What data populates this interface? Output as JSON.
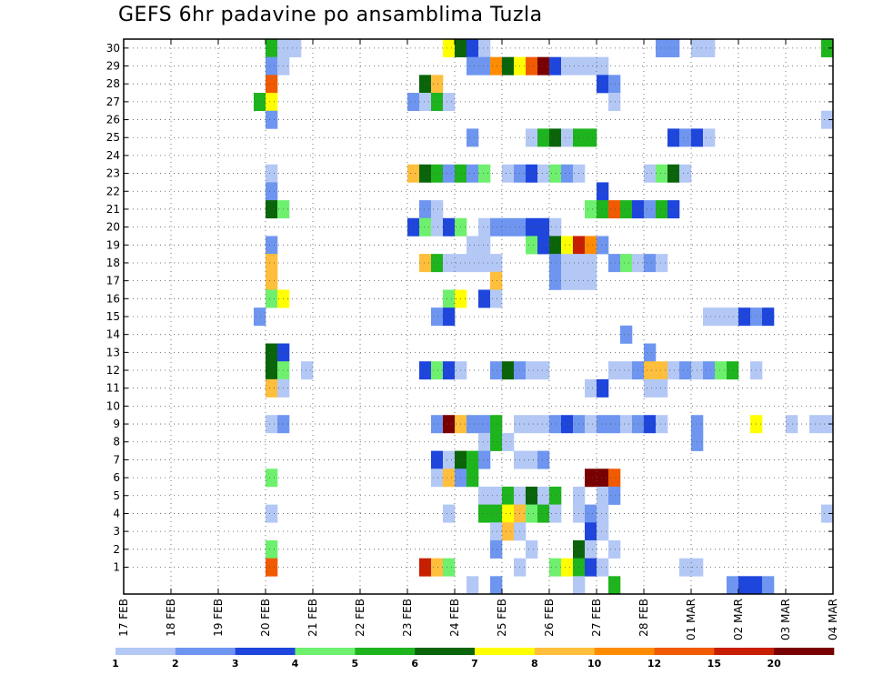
{
  "chart_data": {
    "type": "heatmap",
    "title": "GEFS 6hr padavine po ansamblima Tuzla",
    "x_tick_labels": [
      "17 FEB",
      "18 FEB",
      "19 FEB",
      "20 FEB",
      "21 FEB",
      "22 FEB",
      "23 FEB",
      "24 FEB",
      "25 FEB",
      "26 FEB",
      "27 FEB",
      "28 FEB",
      "01 MAR",
      "02 MAR",
      "03 MAR",
      "04 MAR"
    ],
    "y_tick_labels": [
      "1",
      "2",
      "3",
      "4",
      "5",
      "6",
      "7",
      "8",
      "9",
      "10",
      "11",
      "12",
      "13",
      "14",
      "15",
      "16",
      "17",
      "18",
      "19",
      "20",
      "21",
      "22",
      "23",
      "24",
      "25",
      "26",
      "27",
      "28",
      "29",
      "30"
    ],
    "x_range_steps": [
      0,
      60
    ],
    "y_range_members": [
      0,
      30
    ],
    "grid": "dotted",
    "colorbar": {
      "labels": [
        "1",
        "2",
        "3",
        "4",
        "5",
        "6",
        "7",
        "8",
        "10",
        "12",
        "15",
        "20"
      ],
      "colors": [
        "#b4c8f5",
        "#6e96f0",
        "#1e46dc",
        "#6ef06e",
        "#1eb41e",
        "#0a640a",
        "#ffff00",
        "#ffbe3c",
        "#ff8c00",
        "#f05a00",
        "#c81e00",
        "#780000"
      ]
    },
    "cells": [
      {
        "m": 30,
        "s": 12,
        "c": 5
      },
      {
        "m": 30,
        "s": 13,
        "c": 1
      },
      {
        "m": 30,
        "s": 14,
        "c": 1
      },
      {
        "m": 30,
        "s": 27,
        "c": 7
      },
      {
        "m": 30,
        "s": 28,
        "c": 6
      },
      {
        "m": 30,
        "s": 29,
        "c": 3
      },
      {
        "m": 30,
        "s": 30,
        "c": 1
      },
      {
        "m": 30,
        "s": 45,
        "c": 2
      },
      {
        "m": 30,
        "s": 46,
        "c": 2
      },
      {
        "m": 30,
        "s": 48,
        "c": 1
      },
      {
        "m": 30,
        "s": 49,
        "c": 1
      },
      {
        "m": 30,
        "s": 59,
        "c": 5
      },
      {
        "m": 29,
        "s": 12,
        "c": 2
      },
      {
        "m": 29,
        "s": 13,
        "c": 1
      },
      {
        "m": 29,
        "s": 29,
        "c": 2
      },
      {
        "m": 29,
        "s": 30,
        "c": 2
      },
      {
        "m": 29,
        "s": 31,
        "c": 9
      },
      {
        "m": 29,
        "s": 32,
        "c": 6
      },
      {
        "m": 29,
        "s": 33,
        "c": 7
      },
      {
        "m": 29,
        "s": 34,
        "c": 10
      },
      {
        "m": 29,
        "s": 35,
        "c": 12
      },
      {
        "m": 29,
        "s": 36,
        "c": 3
      },
      {
        "m": 29,
        "s": 37,
        "c": 1
      },
      {
        "m": 29,
        "s": 38,
        "c": 1
      },
      {
        "m": 29,
        "s": 39,
        "c": 1
      },
      {
        "m": 29,
        "s": 40,
        "c": 1
      },
      {
        "m": 28,
        "s": 12,
        "c": 10
      },
      {
        "m": 28,
        "s": 25,
        "c": 6
      },
      {
        "m": 28,
        "s": 26,
        "c": 8
      },
      {
        "m": 28,
        "s": 40,
        "c": 3
      },
      {
        "m": 28,
        "s": 41,
        "c": 2
      },
      {
        "m": 27,
        "s": 11,
        "c": 5
      },
      {
        "m": 27,
        "s": 12,
        "c": 7
      },
      {
        "m": 27,
        "s": 24,
        "c": 2
      },
      {
        "m": 27,
        "s": 25,
        "c": 1
      },
      {
        "m": 27,
        "s": 26,
        "c": 5
      },
      {
        "m": 27,
        "s": 27,
        "c": 1
      },
      {
        "m": 27,
        "s": 41,
        "c": 1
      },
      {
        "m": 26,
        "s": 12,
        "c": 2
      },
      {
        "m": 26,
        "s": 59,
        "c": 1
      },
      {
        "m": 25,
        "s": 29,
        "c": 2
      },
      {
        "m": 25,
        "s": 34,
        "c": 1
      },
      {
        "m": 25,
        "s": 35,
        "c": 5
      },
      {
        "m": 25,
        "s": 36,
        "c": 6
      },
      {
        "m": 25,
        "s": 37,
        "c": 1
      },
      {
        "m": 25,
        "s": 38,
        "c": 5
      },
      {
        "m": 25,
        "s": 39,
        "c": 5
      },
      {
        "m": 25,
        "s": 46,
        "c": 3
      },
      {
        "m": 25,
        "s": 47,
        "c": 2
      },
      {
        "m": 25,
        "s": 48,
        "c": 3
      },
      {
        "m": 25,
        "s": 49,
        "c": 1
      },
      {
        "m": 23,
        "s": 12,
        "c": 1
      },
      {
        "m": 23,
        "s": 24,
        "c": 8
      },
      {
        "m": 23,
        "s": 25,
        "c": 6
      },
      {
        "m": 23,
        "s": 26,
        "c": 5
      },
      {
        "m": 23,
        "s": 27,
        "c": 2
      },
      {
        "m": 23,
        "s": 28,
        "c": 5
      },
      {
        "m": 23,
        "s": 29,
        "c": 2
      },
      {
        "m": 23,
        "s": 30,
        "c": 4
      },
      {
        "m": 23,
        "s": 32,
        "c": 1
      },
      {
        "m": 23,
        "s": 33,
        "c": 2
      },
      {
        "m": 23,
        "s": 34,
        "c": 3
      },
      {
        "m": 23,
        "s": 35,
        "c": 1
      },
      {
        "m": 23,
        "s": 36,
        "c": 4
      },
      {
        "m": 23,
        "s": 37,
        "c": 2
      },
      {
        "m": 23,
        "s": 38,
        "c": 1
      },
      {
        "m": 23,
        "s": 44,
        "c": 1
      },
      {
        "m": 23,
        "s": 45,
        "c": 4
      },
      {
        "m": 23,
        "s": 46,
        "c": 6
      },
      {
        "m": 23,
        "s": 47,
        "c": 1
      },
      {
        "m": 22,
        "s": 12,
        "c": 2
      },
      {
        "m": 22,
        "s": 40,
        "c": 3
      },
      {
        "m": 21,
        "s": 12,
        "c": 6
      },
      {
        "m": 21,
        "s": 13,
        "c": 4
      },
      {
        "m": 21,
        "s": 25,
        "c": 2
      },
      {
        "m": 21,
        "s": 26,
        "c": 1
      },
      {
        "m": 21,
        "s": 39,
        "c": 4
      },
      {
        "m": 21,
        "s": 40,
        "c": 5
      },
      {
        "m": 21,
        "s": 41,
        "c": 10
      },
      {
        "m": 21,
        "s": 42,
        "c": 5
      },
      {
        "m": 21,
        "s": 43,
        "c": 3
      },
      {
        "m": 21,
        "s": 44,
        "c": 2
      },
      {
        "m": 21,
        "s": 45,
        "c": 5
      },
      {
        "m": 21,
        "s": 46,
        "c": 3
      },
      {
        "m": 20,
        "s": 24,
        "c": 3
      },
      {
        "m": 20,
        "s": 25,
        "c": 4
      },
      {
        "m": 20,
        "s": 26,
        "c": 1
      },
      {
        "m": 20,
        "s": 27,
        "c": 3
      },
      {
        "m": 20,
        "s": 28,
        "c": 4
      },
      {
        "m": 20,
        "s": 30,
        "c": 1
      },
      {
        "m": 20,
        "s": 31,
        "c": 2
      },
      {
        "m": 20,
        "s": 32,
        "c": 2
      },
      {
        "m": 20,
        "s": 33,
        "c": 2
      },
      {
        "m": 20,
        "s": 34,
        "c": 3
      },
      {
        "m": 20,
        "s": 35,
        "c": 3
      },
      {
        "m": 20,
        "s": 36,
        "c": 1
      },
      {
        "m": 19,
        "s": 12,
        "c": 2
      },
      {
        "m": 19,
        "s": 29,
        "c": 1
      },
      {
        "m": 19,
        "s": 30,
        "c": 1
      },
      {
        "m": 19,
        "s": 34,
        "c": 4
      },
      {
        "m": 19,
        "s": 35,
        "c": 3
      },
      {
        "m": 19,
        "s": 36,
        "c": 6
      },
      {
        "m": 19,
        "s": 37,
        "c": 7
      },
      {
        "m": 19,
        "s": 38,
        "c": 11
      },
      {
        "m": 19,
        "s": 39,
        "c": 9
      },
      {
        "m": 19,
        "s": 40,
        "c": 2
      },
      {
        "m": 18,
        "s": 12,
        "c": 8
      },
      {
        "m": 18,
        "s": 25,
        "c": 8
      },
      {
        "m": 18,
        "s": 26,
        "c": 5
      },
      {
        "m": 18,
        "s": 27,
        "c": 1
      },
      {
        "m": 18,
        "s": 28,
        "c": 1
      },
      {
        "m": 18,
        "s": 29,
        "c": 1
      },
      {
        "m": 18,
        "s": 30,
        "c": 1
      },
      {
        "m": 18,
        "s": 31,
        "c": 1
      },
      {
        "m": 18,
        "s": 36,
        "c": 2
      },
      {
        "m": 18,
        "s": 37,
        "c": 1
      },
      {
        "m": 18,
        "s": 38,
        "c": 1
      },
      {
        "m": 18,
        "s": 39,
        "c": 1
      },
      {
        "m": 18,
        "s": 41,
        "c": 2
      },
      {
        "m": 18,
        "s": 42,
        "c": 4
      },
      {
        "m": 18,
        "s": 43,
        "c": 1
      },
      {
        "m": 18,
        "s": 44,
        "c": 2
      },
      {
        "m": 18,
        "s": 45,
        "c": 1
      },
      {
        "m": 17,
        "s": 12,
        "c": 8
      },
      {
        "m": 17,
        "s": 31,
        "c": 8
      },
      {
        "m": 17,
        "s": 36,
        "c": 2
      },
      {
        "m": 17,
        "s": 37,
        "c": 1
      },
      {
        "m": 17,
        "s": 38,
        "c": 1
      },
      {
        "m": 17,
        "s": 39,
        "c": 1
      },
      {
        "m": 16,
        "s": 12,
        "c": 4
      },
      {
        "m": 16,
        "s": 13,
        "c": 7
      },
      {
        "m": 16,
        "s": 27,
        "c": 4
      },
      {
        "m": 16,
        "s": 28,
        "c": 7
      },
      {
        "m": 16,
        "s": 30,
        "c": 3
      },
      {
        "m": 16,
        "s": 31,
        "c": 1
      },
      {
        "m": 15,
        "s": 11,
        "c": 2
      },
      {
        "m": 15,
        "s": 26,
        "c": 2
      },
      {
        "m": 15,
        "s": 27,
        "c": 3
      },
      {
        "m": 15,
        "s": 49,
        "c": 1
      },
      {
        "m": 15,
        "s": 50,
        "c": 1
      },
      {
        "m": 15,
        "s": 51,
        "c": 1
      },
      {
        "m": 15,
        "s": 52,
        "c": 3
      },
      {
        "m": 15,
        "s": 53,
        "c": 2
      },
      {
        "m": 15,
        "s": 54,
        "c": 3
      },
      {
        "m": 14,
        "s": 42,
        "c": 2
      },
      {
        "m": 13,
        "s": 12,
        "c": 6
      },
      {
        "m": 13,
        "s": 13,
        "c": 3
      },
      {
        "m": 13,
        "s": 44,
        "c": 2
      },
      {
        "m": 12,
        "s": 12,
        "c": 6
      },
      {
        "m": 12,
        "s": 13,
        "c": 4
      },
      {
        "m": 12,
        "s": 15,
        "c": 1
      },
      {
        "m": 12,
        "s": 25,
        "c": 3
      },
      {
        "m": 12,
        "s": 26,
        "c": 4
      },
      {
        "m": 12,
        "s": 27,
        "c": 3
      },
      {
        "m": 12,
        "s": 28,
        "c": 1
      },
      {
        "m": 12,
        "s": 31,
        "c": 2
      },
      {
        "m": 12,
        "s": 32,
        "c": 6
      },
      {
        "m": 12,
        "s": 33,
        "c": 2
      },
      {
        "m": 12,
        "s": 34,
        "c": 1
      },
      {
        "m": 12,
        "s": 35,
        "c": 1
      },
      {
        "m": 12,
        "s": 41,
        "c": 1
      },
      {
        "m": 12,
        "s": 42,
        "c": 1
      },
      {
        "m": 12,
        "s": 43,
        "c": 2
      },
      {
        "m": 12,
        "s": 44,
        "c": 8
      },
      {
        "m": 12,
        "s": 45,
        "c": 8
      },
      {
        "m": 12,
        "s": 46,
        "c": 1
      },
      {
        "m": 12,
        "s": 47,
        "c": 2
      },
      {
        "m": 12,
        "s": 48,
        "c": 1
      },
      {
        "m": 12,
        "s": 49,
        "c": 2
      },
      {
        "m": 12,
        "s": 50,
        "c": 4
      },
      {
        "m": 12,
        "s": 51,
        "c": 5
      },
      {
        "m": 12,
        "s": 53,
        "c": 1
      },
      {
        "m": 11,
        "s": 12,
        "c": 8
      },
      {
        "m": 11,
        "s": 13,
        "c": 1
      },
      {
        "m": 11,
        "s": 39,
        "c": 1
      },
      {
        "m": 11,
        "s": 40,
        "c": 3
      },
      {
        "m": 11,
        "s": 44,
        "c": 1
      },
      {
        "m": 11,
        "s": 45,
        "c": 1
      },
      {
        "m": 9,
        "s": 12,
        "c": 1
      },
      {
        "m": 9,
        "s": 13,
        "c": 2
      },
      {
        "m": 9,
        "s": 26,
        "c": 2
      },
      {
        "m": 9,
        "s": 27,
        "c": 12
      },
      {
        "m": 9,
        "s": 28,
        "c": 8
      },
      {
        "m": 9,
        "s": 29,
        "c": 2
      },
      {
        "m": 9,
        "s": 30,
        "c": 2
      },
      {
        "m": 9,
        "s": 31,
        "c": 5
      },
      {
        "m": 9,
        "s": 33,
        "c": 1
      },
      {
        "m": 9,
        "s": 34,
        "c": 1
      },
      {
        "m": 9,
        "s": 35,
        "c": 1
      },
      {
        "m": 9,
        "s": 36,
        "c": 2
      },
      {
        "m": 9,
        "s": 37,
        "c": 3
      },
      {
        "m": 9,
        "s": 38,
        "c": 2
      },
      {
        "m": 9,
        "s": 39,
        "c": 1
      },
      {
        "m": 9,
        "s": 40,
        "c": 2
      },
      {
        "m": 9,
        "s": 41,
        "c": 2
      },
      {
        "m": 9,
        "s": 42,
        "c": 1
      },
      {
        "m": 9,
        "s": 43,
        "c": 2
      },
      {
        "m": 9,
        "s": 44,
        "c": 3
      },
      {
        "m": 9,
        "s": 45,
        "c": 1
      },
      {
        "m": 9,
        "s": 48,
        "c": 2
      },
      {
        "m": 9,
        "s": 53,
        "c": 7
      },
      {
        "m": 9,
        "s": 56,
        "c": 1
      },
      {
        "m": 9,
        "s": 58,
        "c": 1
      },
      {
        "m": 9,
        "s": 59,
        "c": 1
      },
      {
        "m": 8,
        "s": 30,
        "c": 1
      },
      {
        "m": 8,
        "s": 31,
        "c": 5
      },
      {
        "m": 8,
        "s": 32,
        "c": 1
      },
      {
        "m": 8,
        "s": 48,
        "c": 2
      },
      {
        "m": 7,
        "s": 26,
        "c": 3
      },
      {
        "m": 7,
        "s": 27,
        "c": 1
      },
      {
        "m": 7,
        "s": 28,
        "c": 6
      },
      {
        "m": 7,
        "s": 29,
        "c": 5
      },
      {
        "m": 7,
        "s": 30,
        "c": 2
      },
      {
        "m": 7,
        "s": 33,
        "c": 1
      },
      {
        "m": 7,
        "s": 34,
        "c": 1
      },
      {
        "m": 7,
        "s": 35,
        "c": 2
      },
      {
        "m": 6,
        "s": 12,
        "c": 4
      },
      {
        "m": 6,
        "s": 26,
        "c": 1
      },
      {
        "m": 6,
        "s": 27,
        "c": 8
      },
      {
        "m": 6,
        "s": 28,
        "c": 2
      },
      {
        "m": 6,
        "s": 29,
        "c": 5
      },
      {
        "m": 6,
        "s": 39,
        "c": 12
      },
      {
        "m": 6,
        "s": 40,
        "c": 12
      },
      {
        "m": 6,
        "s": 41,
        "c": 10
      },
      {
        "m": 5,
        "s": 30,
        "c": 1
      },
      {
        "m": 5,
        "s": 31,
        "c": 1
      },
      {
        "m": 5,
        "s": 32,
        "c": 5
      },
      {
        "m": 5,
        "s": 33,
        "c": 1
      },
      {
        "m": 5,
        "s": 34,
        "c": 6
      },
      {
        "m": 5,
        "s": 35,
        "c": 1
      },
      {
        "m": 5,
        "s": 36,
        "c": 5
      },
      {
        "m": 5,
        "s": 38,
        "c": 1
      },
      {
        "m": 5,
        "s": 40,
        "c": 1
      },
      {
        "m": 5,
        "s": 41,
        "c": 2
      },
      {
        "m": 4,
        "s": 12,
        "c": 1
      },
      {
        "m": 4,
        "s": 27,
        "c": 1
      },
      {
        "m": 4,
        "s": 30,
        "c": 5
      },
      {
        "m": 4,
        "s": 31,
        "c": 5
      },
      {
        "m": 4,
        "s": 32,
        "c": 7
      },
      {
        "m": 4,
        "s": 33,
        "c": 8
      },
      {
        "m": 4,
        "s": 34,
        "c": 4
      },
      {
        "m": 4,
        "s": 35,
        "c": 5
      },
      {
        "m": 4,
        "s": 36,
        "c": 1
      },
      {
        "m": 4,
        "s": 38,
        "c": 1
      },
      {
        "m": 4,
        "s": 39,
        "c": 2
      },
      {
        "m": 4,
        "s": 40,
        "c": 1
      },
      {
        "m": 4,
        "s": 59,
        "c": 1
      },
      {
        "m": 3,
        "s": 31,
        "c": 1
      },
      {
        "m": 3,
        "s": 32,
        "c": 8
      },
      {
        "m": 3,
        "s": 33,
        "c": 1
      },
      {
        "m": 3,
        "s": 39,
        "c": 3
      },
      {
        "m": 3,
        "s": 40,
        "c": 1
      },
      {
        "m": 2,
        "s": 12,
        "c": 4
      },
      {
        "m": 2,
        "s": 31,
        "c": 2
      },
      {
        "m": 2,
        "s": 34,
        "c": 1
      },
      {
        "m": 2,
        "s": 38,
        "c": 6
      },
      {
        "m": 2,
        "s": 39,
        "c": 1
      },
      {
        "m": 2,
        "s": 41,
        "c": 1
      },
      {
        "m": 1,
        "s": 12,
        "c": 10
      },
      {
        "m": 1,
        "s": 25,
        "c": 11
      },
      {
        "m": 1,
        "s": 26,
        "c": 8
      },
      {
        "m": 1,
        "s": 27,
        "c": 4
      },
      {
        "m": 1,
        "s": 33,
        "c": 1
      },
      {
        "m": 1,
        "s": 36,
        "c": 4
      },
      {
        "m": 1,
        "s": 37,
        "c": 7
      },
      {
        "m": 1,
        "s": 38,
        "c": 5
      },
      {
        "m": 1,
        "s": 39,
        "c": 3
      },
      {
        "m": 1,
        "s": 40,
        "c": 1
      },
      {
        "m": 1,
        "s": 47,
        "c": 1
      },
      {
        "m": 1,
        "s": 48,
        "c": 1
      },
      {
        "m": 0,
        "s": 29,
        "c": 1
      },
      {
        "m": 0,
        "s": 31,
        "c": 2
      },
      {
        "m": 0,
        "s": 38,
        "c": 1
      },
      {
        "m": 0,
        "s": 41,
        "c": 5
      },
      {
        "m": 0,
        "s": 51,
        "c": 2
      },
      {
        "m": 0,
        "s": 52,
        "c": 3
      },
      {
        "m": 0,
        "s": 53,
        "c": 3
      },
      {
        "m": 0,
        "s": 54,
        "c": 2
      }
    ]
  }
}
